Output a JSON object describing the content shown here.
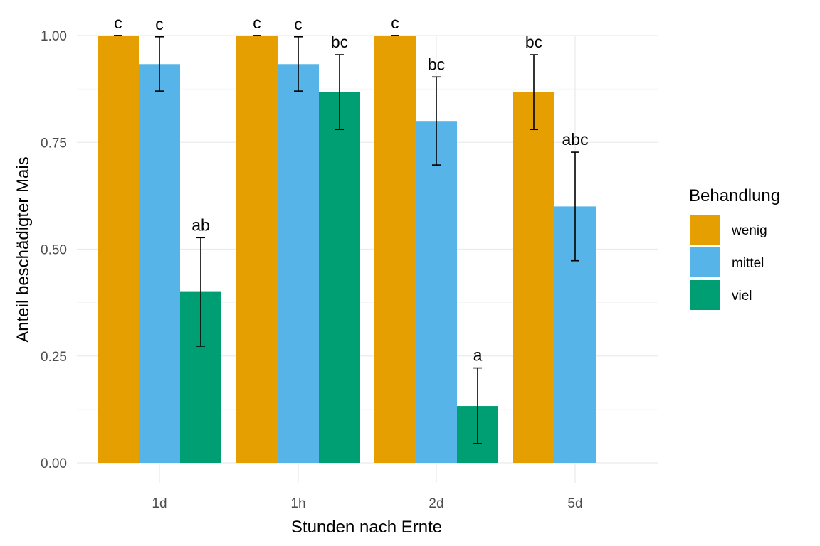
{
  "chart_data": {
    "type": "bar",
    "xlabel": "Stunden nach Ernte",
    "ylabel": "Anteil beschädigter Mais",
    "ylim": [
      0,
      1.0
    ],
    "yticks": [
      "0.00",
      "0.25",
      "0.50",
      "0.75",
      "1.00"
    ],
    "grid": true,
    "categories": [
      "1d",
      "1h",
      "2d",
      "5d"
    ],
    "legend": {
      "title": "Behandlung",
      "position": "right"
    },
    "series": [
      {
        "name": "wenig",
        "color": "#E69F00",
        "values": [
          1.0,
          1.0,
          1.0,
          0.867
        ],
        "err_low": [
          1.0,
          1.0,
          1.0,
          0.78
        ],
        "err_high": [
          1.0,
          1.0,
          1.0,
          0.955
        ],
        "labels": [
          "c",
          "c",
          "c",
          "bc"
        ]
      },
      {
        "name": "mittel",
        "color": "#56B4E9",
        "values": [
          0.933,
          0.933,
          0.8,
          0.6
        ],
        "err_low": [
          0.87,
          0.87,
          0.697,
          0.473
        ],
        "err_high": [
          0.997,
          0.997,
          0.903,
          0.727
        ],
        "labels": [
          "c",
          "c",
          "bc",
          "abc"
        ]
      },
      {
        "name": "viel",
        "color": "#009E73",
        "values": [
          0.4,
          0.867,
          0.133,
          null
        ],
        "err_low": [
          0.273,
          0.78,
          0.045,
          null
        ],
        "err_high": [
          0.527,
          0.955,
          0.222,
          null
        ],
        "labels": [
          "ab",
          "bc",
          "a",
          null
        ]
      }
    ]
  }
}
